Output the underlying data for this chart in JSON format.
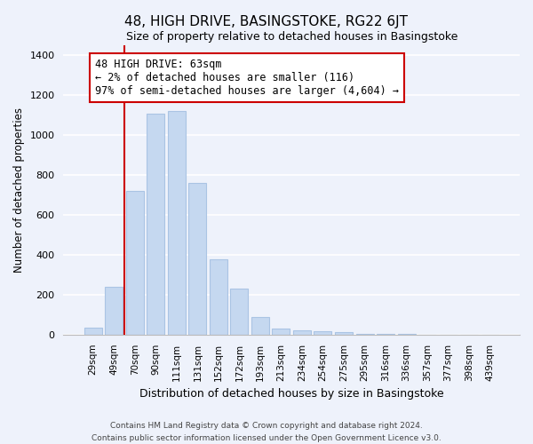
{
  "title": "48, HIGH DRIVE, BASINGSTOKE, RG22 6JT",
  "subtitle": "Size of property relative to detached houses in Basingstoke",
  "xlabel": "Distribution of detached houses by size in Basingstoke",
  "ylabel": "Number of detached properties",
  "bar_labels": [
    "29sqm",
    "49sqm",
    "70sqm",
    "90sqm",
    "111sqm",
    "131sqm",
    "152sqm",
    "172sqm",
    "193sqm",
    "213sqm",
    "234sqm",
    "254sqm",
    "275sqm",
    "295sqm",
    "316sqm",
    "336sqm",
    "357sqm",
    "377sqm",
    "398sqm",
    "439sqm"
  ],
  "bar_values": [
    35,
    240,
    720,
    1105,
    1120,
    760,
    378,
    230,
    90,
    30,
    20,
    15,
    12,
    5,
    3,
    2,
    1,
    1,
    0,
    0
  ],
  "bar_color": "#c5d8f0",
  "bar_edge_color": "#aac4e4",
  "vline_color": "#cc0000",
  "annotation_text_line1": "48 HIGH DRIVE: 63sqm",
  "annotation_text_line2": "← 2% of detached houses are smaller (116)",
  "annotation_text_line3": "97% of semi-detached houses are larger (4,604) →",
  "annotation_box_color": "white",
  "annotation_box_edge_color": "#cc0000",
  "ylim": [
    0,
    1450
  ],
  "yticks": [
    0,
    200,
    400,
    600,
    800,
    1000,
    1200,
    1400
  ],
  "footnote_line1": "Contains HM Land Registry data © Crown copyright and database right 2024.",
  "footnote_line2": "Contains public sector information licensed under the Open Government Licence v3.0.",
  "bg_color": "#eef2fb",
  "grid_color": "white"
}
